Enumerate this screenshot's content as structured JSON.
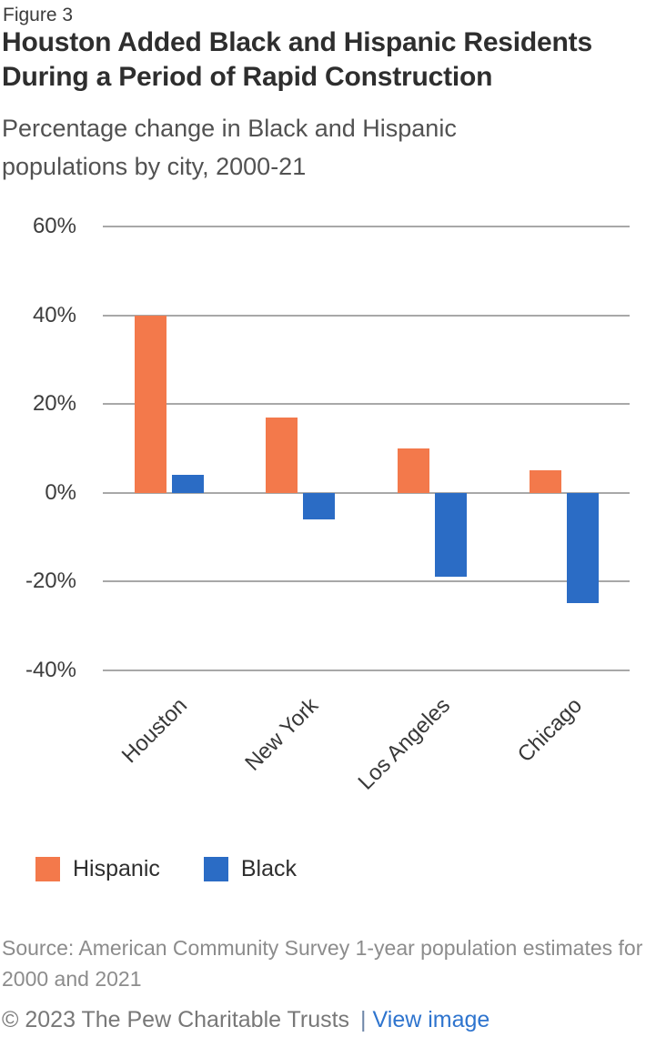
{
  "figure_label": "Figure 3",
  "title": "Houston Added Black and Hispanic Residents During a Period of Rapid Construction",
  "subtitle": "Percentage change in Black and Hispanic populations by city, 2000-21",
  "chart_data": {
    "type": "bar",
    "title": "Houston Added Black and Hispanic Residents During a Period of Rapid Construction",
    "subtitle": "Percentage change in Black and Hispanic populations by city, 2000-21",
    "categories": [
      "Houston",
      "New York",
      "Los Angeles",
      "Chicago"
    ],
    "series": [
      {
        "name": "Hispanic",
        "color": "#f3794b",
        "values": [
          40,
          17,
          10,
          5
        ]
      },
      {
        "name": "Black",
        "color": "#2b6cc5",
        "values": [
          4,
          -6,
          -19,
          -25
        ]
      }
    ],
    "xlabel": "",
    "ylabel": "",
    "y_ticks": [
      "60%",
      "40%",
      "20%",
      "0%",
      "-20%",
      "-40%"
    ],
    "y_tick_values": [
      60,
      40,
      20,
      0,
      -20,
      -40
    ],
    "ylim": [
      -40,
      60
    ],
    "grid": true,
    "gridline_color": "#a8a8a8",
    "legend_position": "bottom"
  },
  "source": "Source: American Community Survey 1-year population estimates for 2000 and 2021",
  "footer": {
    "copyright": "© 2023 The Pew Charitable Trusts",
    "divider": "|",
    "link_label": "View image",
    "link_color": "#2e74ce"
  }
}
